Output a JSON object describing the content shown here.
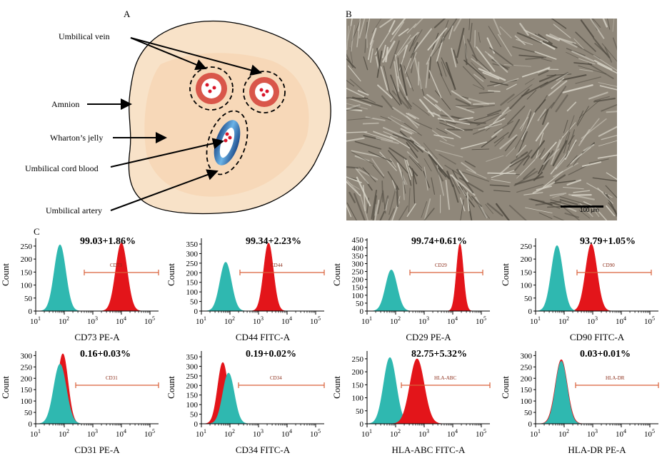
{
  "panel_a": {
    "letter": "A",
    "labels": {
      "vein": "Umbilical vein",
      "amnion": "Amnion",
      "wharton": "Wharton’s jelly",
      "blood": "Umbilical cord blood",
      "artery": "Umbilical artery"
    }
  },
  "panel_b": {
    "letter": "B",
    "scale_bar": "100 μm"
  },
  "panel_c": {
    "letter": "C"
  },
  "colors": {
    "control": "#2fb8b0",
    "marker": "#e3151a",
    "gate": "#d9603a",
    "cord_tissue": "#f8e2c8",
    "vessel": "#d9564a"
  },
  "chart_data": [
    {
      "type": "area",
      "marker": "CD73",
      "xlabel": "CD73 PE-A",
      "ylabel": "Count",
      "stat": "99.03+1.86%",
      "gate_label": "CD73",
      "yticks": [
        0,
        50,
        100,
        150,
        200,
        250
      ],
      "ylim": [
        0,
        280
      ],
      "xlim": [
        1,
        5.3
      ],
      "xticks": [
        "10",
        "10",
        "10",
        "10",
        "10"
      ],
      "xexp": [
        "1",
        "2",
        "3",
        "4",
        "5"
      ],
      "control": {
        "center": 1.85,
        "sd": 0.2,
        "peak": 255
      },
      "sample": {
        "center": 4.0,
        "sd": 0.2,
        "peak": 262
      },
      "gate": [
        2.7,
        5.3
      ]
    },
    {
      "type": "area",
      "marker": "CD44",
      "xlabel": "CD44 FITC-A",
      "ylabel": "Count",
      "stat": "99.34+2.23%",
      "gate_label": "CD44",
      "yticks": [
        0,
        50,
        100,
        150,
        200,
        250,
        300,
        350
      ],
      "ylim": [
        0,
        380
      ],
      "xlim": [
        1,
        5.3
      ],
      "xticks": [
        "10",
        "10",
        "10",
        "10",
        "10"
      ],
      "xexp": [
        "1",
        "2",
        "3",
        "4",
        "5"
      ],
      "control": {
        "center": 1.85,
        "sd": 0.2,
        "peak": 255
      },
      "sample": {
        "center": 3.35,
        "sd": 0.17,
        "peak": 355
      },
      "gate": [
        2.35,
        5.3
      ]
    },
    {
      "type": "area",
      "marker": "CD29",
      "xlabel": "CD29 PE-A",
      "ylabel": "Count",
      "stat": "99.74+0.61%",
      "gate_label": "CD29",
      "yticks": [
        0,
        50,
        100,
        150,
        200,
        250,
        300,
        350,
        400,
        450
      ],
      "ylim": [
        0,
        460
      ],
      "xlim": [
        1,
        5.3
      ],
      "xticks": [
        "10",
        "10",
        "10",
        "10",
        "10"
      ],
      "xexp": [
        "1",
        "2",
        "3",
        "4",
        "5"
      ],
      "control": {
        "center": 1.85,
        "sd": 0.2,
        "peak": 260
      },
      "sample": {
        "center": 4.25,
        "sd": 0.12,
        "peak": 425
      },
      "gate": [
        2.5,
        5.05
      ]
    },
    {
      "type": "area",
      "marker": "CD90",
      "xlabel": "CD90 FITC-A",
      "ylabel": "Count",
      "stat": "93.79+1.05%",
      "gate_label": "CD90",
      "yticks": [
        0,
        50,
        100,
        150,
        200,
        250
      ],
      "ylim": [
        0,
        280
      ],
      "xlim": [
        1,
        5.3
      ],
      "xticks": [
        "10",
        "10",
        "10",
        "10",
        "10"
      ],
      "xexp": [
        "1",
        "2",
        "3",
        "4",
        "5"
      ],
      "control": {
        "center": 1.75,
        "sd": 0.2,
        "peak": 252
      },
      "sample": {
        "center": 2.95,
        "sd": 0.2,
        "peak": 258
      },
      "gate": [
        2.45,
        5.05
      ]
    },
    {
      "type": "area",
      "marker": "CD31",
      "xlabel": "CD31 PE-A",
      "ylabel": "Count",
      "stat": "0.16+0.03%",
      "gate_label": "CD31",
      "yticks": [
        0,
        50,
        100,
        150,
        200,
        250,
        300
      ],
      "ylim": [
        0,
        320
      ],
      "xlim": [
        1,
        5.3
      ],
      "xticks": [
        "10",
        "10",
        "10",
        "10",
        "10"
      ],
      "xexp": [
        "1",
        "2",
        "3",
        "4",
        "5"
      ],
      "control": {
        "center": 1.85,
        "sd": 0.22,
        "peak": 262
      },
      "sample": {
        "center": 1.95,
        "sd": 0.18,
        "peak": 308
      },
      "gate": [
        2.4,
        5.3
      ]
    },
    {
      "type": "area",
      "marker": "CD34",
      "xlabel": "CD34 FITC-A",
      "ylabel": "Count",
      "stat": "0.19+0.02%",
      "gate_label": "CD34",
      "yticks": [
        0,
        50,
        100,
        150,
        200,
        250,
        300,
        350
      ],
      "ylim": [
        0,
        380
      ],
      "xlim": [
        1,
        5.3
      ],
      "xticks": [
        "10",
        "10",
        "10",
        "10",
        "10"
      ],
      "xexp": [
        "1",
        "2",
        "3",
        "4",
        "5"
      ],
      "control": {
        "center": 1.95,
        "sd": 0.2,
        "peak": 265
      },
      "sample": {
        "center": 1.75,
        "sd": 0.18,
        "peak": 320
      },
      "gate": [
        2.3,
        5.3
      ]
    },
    {
      "type": "area",
      "marker": "HLA-ABC",
      "xlabel": "HLA-ABC FITC-A",
      "ylabel": "Count",
      "stat": "82.75+5.32%",
      "gate_label": "HLA-ABC",
      "yticks": [
        0,
        50,
        100,
        150,
        200,
        250
      ],
      "ylim": [
        0,
        280
      ],
      "xlim": [
        1,
        5.3
      ],
      "xticks": [
        "10",
        "10",
        "10",
        "10",
        "10"
      ],
      "xexp": [
        "1",
        "2",
        "3",
        "4",
        "5"
      ],
      "control": {
        "center": 1.8,
        "sd": 0.22,
        "peak": 255
      },
      "sample": {
        "center": 2.75,
        "sd": 0.25,
        "peak": 250
      },
      "gate": [
        2.2,
        5.3
      ]
    },
    {
      "type": "area",
      "marker": "HLA-DR",
      "xlabel": "HLA-DR PE-A",
      "ylabel": "Count",
      "stat": "0.03+0.01%",
      "gate_label": "HLA-DR",
      "yticks": [
        0,
        50,
        100,
        150,
        200,
        250,
        300
      ],
      "ylim": [
        0,
        320
      ],
      "xlim": [
        1,
        5.3
      ],
      "xticks": [
        "10",
        "10",
        "10",
        "10",
        "10"
      ],
      "xexp": [
        "1",
        "2",
        "3",
        "4",
        "5"
      ],
      "control": {
        "center": 1.9,
        "sd": 0.2,
        "peak": 275
      },
      "sample": {
        "center": 1.9,
        "sd": 0.21,
        "peak": 282
      },
      "gate": [
        2.4,
        5.3
      ]
    }
  ]
}
